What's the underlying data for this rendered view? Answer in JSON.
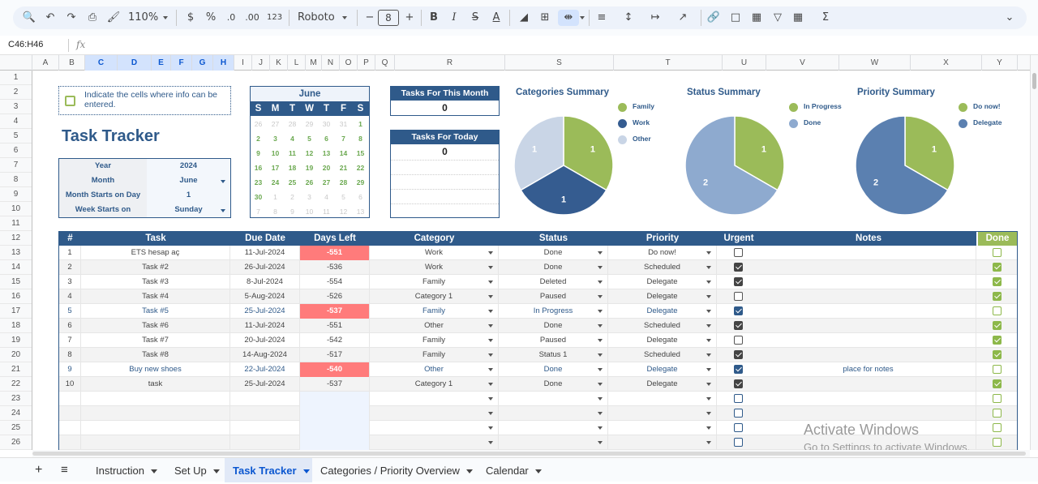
{
  "toolbar": {
    "zoom": "110%",
    "currency": "$",
    "percent": "%",
    "dec_less": ".0",
    "dec_more": ".00",
    "format_123": "123",
    "font": "Roboto",
    "font_size": "8",
    "minus": "−",
    "plus": "+",
    "bold": "B",
    "italic": "I",
    "strike": "S",
    "text_color": "A",
    "sigma": "Σ"
  },
  "formula_bar": {
    "name_box": "C46:H46",
    "fx": "fx"
  },
  "columns": [
    "A",
    "B",
    "C",
    "D",
    "E",
    "F",
    "G",
    "H",
    "I",
    "J",
    "K",
    "L",
    "M",
    "N",
    "O",
    "P",
    "Q",
    "R",
    "S",
    "T",
    "U",
    "V",
    "W",
    "X",
    "Y"
  ],
  "rows": [
    "1",
    "2",
    "3",
    "4",
    "5",
    "6",
    "7",
    "8",
    "9",
    "10",
    "11",
    "12",
    "13",
    "14",
    "15",
    "16",
    "17",
    "18",
    "19",
    "20",
    "21",
    "22",
    "23",
    "24",
    "25",
    "26"
  ],
  "info_note": "Indicate the cells where info can be entered.",
  "title": "Task Tracker",
  "settings": [
    {
      "label": "Year",
      "value": "2024"
    },
    {
      "label": "Month",
      "value": "June"
    },
    {
      "label": "Month Starts on Day",
      "value": "1"
    },
    {
      "label": "Week Starts on",
      "value": "Sunday"
    }
  ],
  "calendar": {
    "month": "June",
    "days": [
      "S",
      "M",
      "T",
      "W",
      "T",
      "F",
      "S"
    ],
    "weeks": [
      [
        "26",
        "27",
        "28",
        "29",
        "30",
        "31",
        "1"
      ],
      [
        "2",
        "3",
        "4",
        "5",
        "6",
        "7",
        "8"
      ],
      [
        "9",
        "10",
        "11",
        "12",
        "13",
        "14",
        "15"
      ],
      [
        "16",
        "17",
        "18",
        "19",
        "20",
        "21",
        "22"
      ],
      [
        "23",
        "24",
        "25",
        "26",
        "27",
        "28",
        "29"
      ],
      [
        "30",
        "1",
        "2",
        "3",
        "4",
        "5",
        "6"
      ],
      [
        "7",
        "8",
        "9",
        "10",
        "11",
        "12",
        "13"
      ]
    ],
    "in_month": [
      [
        0,
        0,
        0,
        0,
        0,
        0,
        1
      ],
      [
        1,
        1,
        1,
        1,
        1,
        1,
        1
      ],
      [
        1,
        1,
        1,
        1,
        1,
        1,
        1
      ],
      [
        1,
        1,
        1,
        1,
        1,
        1,
        1
      ],
      [
        1,
        1,
        1,
        1,
        1,
        1,
        1
      ],
      [
        1,
        0,
        0,
        0,
        0,
        0,
        0
      ],
      [
        0,
        0,
        0,
        0,
        0,
        0,
        0
      ]
    ]
  },
  "tasks_month": {
    "label": "Tasks For This Month",
    "value": "0"
  },
  "tasks_today": {
    "label": "Tasks For Today",
    "value": "0"
  },
  "colors": {
    "navy": "#2f5a8a",
    "green": "#9bbb59",
    "light_blue": "#c9d5e6",
    "mid_blue": "#8eaacf",
    "dark_blue": "#355c90",
    "overdue": "#ff7b7b"
  },
  "charts": [
    {
      "title": "Categories Summary",
      "slices": [
        {
          "name": "Family",
          "value": 1,
          "color": "#9bbb59"
        },
        {
          "name": "Work",
          "value": 1,
          "color": "#355c90"
        },
        {
          "name": "Other",
          "value": 1,
          "color": "#c9d5e6"
        }
      ]
    },
    {
      "title": "Status Summary",
      "slices": [
        {
          "name": "In Progress",
          "value": 1,
          "color": "#9bbb59"
        },
        {
          "name": "Done",
          "value": 2,
          "color": "#8eaacf"
        }
      ]
    },
    {
      "title": "Priority Summary",
      "slices": [
        {
          "name": "Do now!",
          "value": 1,
          "color": "#9bbb59"
        },
        {
          "name": "Delegate",
          "value": 2,
          "color": "#5b80b0"
        }
      ]
    }
  ],
  "table": {
    "headers": [
      "#",
      "Task",
      "Due Date",
      "Days Left",
      "Category",
      "Status",
      "Priority",
      "Urgent",
      "Notes",
      "Done"
    ],
    "rows": [
      {
        "num": "1",
        "task": "ETS hesap aç",
        "due": "11-Jul-2024",
        "left": "-551",
        "cat": "Work",
        "status": "Done",
        "prio": "Do now!",
        "urgent": false,
        "notes": "",
        "done": false,
        "hl": true,
        "blue": false
      },
      {
        "num": "2",
        "task": "Task #2",
        "due": "26-Jul-2024",
        "left": "-536",
        "cat": "Work",
        "status": "Done",
        "prio": "Scheduled",
        "urgent": true,
        "notes": "",
        "done": true,
        "hl": false,
        "blue": false
      },
      {
        "num": "3",
        "task": "Task #3",
        "due": "8-Jul-2024",
        "left": "-554",
        "cat": "Family",
        "status": "Deleted",
        "prio": "Delegate",
        "urgent": true,
        "notes": "",
        "done": true,
        "hl": false,
        "blue": false
      },
      {
        "num": "4",
        "task": "Task #4",
        "due": "5-Aug-2024",
        "left": "-526",
        "cat": "Category 1",
        "status": "Paused",
        "prio": "Delegate",
        "urgent": false,
        "notes": "",
        "done": true,
        "hl": false,
        "blue": false
      },
      {
        "num": "5",
        "task": "Task #5",
        "due": "25-Jul-2024",
        "left": "-537",
        "cat": "Family",
        "status": "In Progress",
        "prio": "Delegate",
        "urgent": true,
        "notes": "",
        "done": false,
        "hl": true,
        "blue": true
      },
      {
        "num": "6",
        "task": "Task #6",
        "due": "11-Jul-2024",
        "left": "-551",
        "cat": "Other",
        "status": "Done",
        "prio": "Scheduled",
        "urgent": true,
        "notes": "",
        "done": true,
        "hl": false,
        "blue": false
      },
      {
        "num": "7",
        "task": "Task #7",
        "due": "20-Jul-2024",
        "left": "-542",
        "cat": "Family",
        "status": "Paused",
        "prio": "Delegate",
        "urgent": false,
        "notes": "",
        "done": true,
        "hl": false,
        "blue": false
      },
      {
        "num": "8",
        "task": "Task #8",
        "due": "14-Aug-2024",
        "left": "-517",
        "cat": "Family",
        "status": "Status 1",
        "prio": "Scheduled",
        "urgent": true,
        "notes": "",
        "done": true,
        "hl": false,
        "blue": false
      },
      {
        "num": "9",
        "task": "Buy new shoes",
        "due": "22-Jul-2024",
        "left": "-540",
        "cat": "Other",
        "status": "Done",
        "prio": "Delegate",
        "urgent": true,
        "notes": "place for notes",
        "done": false,
        "hl": true,
        "blue": true
      },
      {
        "num": "10",
        "task": "task",
        "due": "25-Jul-2024",
        "left": "-537",
        "cat": "Category 1",
        "status": "Done",
        "prio": "Delegate",
        "urgent": true,
        "notes": "",
        "done": true,
        "hl": false,
        "blue": false
      },
      {
        "num": "",
        "task": "",
        "due": "",
        "left": "",
        "cat": "",
        "status": "",
        "prio": "",
        "urgent": false,
        "notes": "",
        "done": false,
        "hl": false,
        "blue": false,
        "empty": true
      },
      {
        "num": "",
        "task": "",
        "due": "",
        "left": "",
        "cat": "",
        "status": "",
        "prio": "",
        "urgent": false,
        "notes": "",
        "done": false,
        "hl": false,
        "blue": false,
        "empty": true
      },
      {
        "num": "",
        "task": "",
        "due": "",
        "left": "",
        "cat": "",
        "status": "",
        "prio": "",
        "urgent": false,
        "notes": "",
        "done": false,
        "hl": false,
        "blue": false,
        "empty": true
      },
      {
        "num": "",
        "task": "",
        "due": "",
        "left": "",
        "cat": "",
        "status": "",
        "prio": "",
        "urgent": false,
        "notes": "",
        "done": false,
        "hl": false,
        "blue": false,
        "empty": true
      }
    ]
  },
  "watermark": {
    "line1": "Activate Windows",
    "line2": "Go to Settings to activate Windows."
  },
  "tabs": [
    {
      "label": "Instruction",
      "active": false
    },
    {
      "label": "Set Up",
      "active": false
    },
    {
      "label": "Task Tracker",
      "active": true
    },
    {
      "label": "Categories / Priority Overview",
      "active": false
    },
    {
      "label": "Calendar",
      "active": false
    }
  ]
}
